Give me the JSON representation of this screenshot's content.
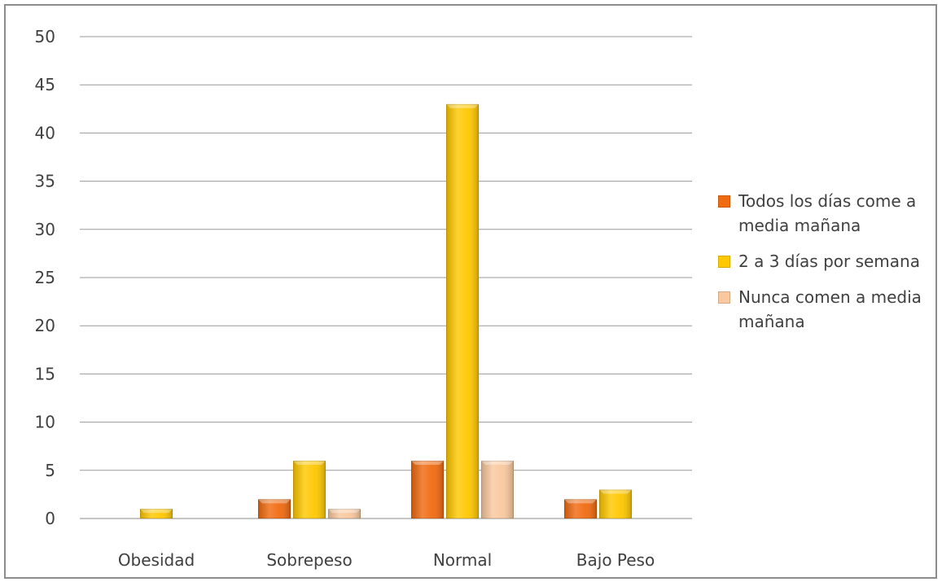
{
  "chart_data": {
    "type": "bar",
    "categories": [
      "Obesidad",
      "Sobrepeso",
      "Normal",
      "Bajo Peso"
    ],
    "series": [
      {
        "name": "Todos los días come a media mañana",
        "color": "#f06a10",
        "values": [
          0,
          2,
          6,
          2
        ]
      },
      {
        "name": "2 a 3 días por semana",
        "color": "#ffc800",
        "values": [
          1,
          6,
          43,
          3
        ]
      },
      {
        "name": "Nunca comen a media mañana",
        "color": "#f9c89e",
        "values": [
          0,
          1,
          6,
          0
        ]
      }
    ],
    "ylim": [
      0,
      50
    ],
    "yticks": [
      0,
      5,
      10,
      15,
      20,
      25,
      30,
      35,
      40,
      45,
      50
    ],
    "grid": true,
    "legend_position": "right"
  }
}
